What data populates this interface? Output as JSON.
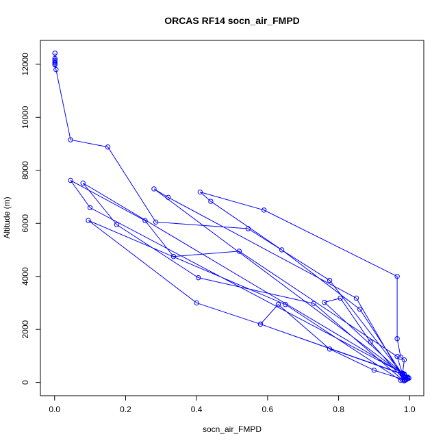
{
  "chart_data": {
    "type": "line",
    "title": "ORCAS RF14 socn_air_FMPD",
    "xlabel": "socn_air_FMPD",
    "ylabel": "Altitude (m)",
    "xlim": [
      -0.04,
      1.04
    ],
    "ylim": [
      -500,
      12900
    ],
    "xticks": [
      "0.0",
      "0.2",
      "0.4",
      "0.6",
      "0.8",
      "1.0"
    ],
    "xtick_values": [
      0,
      0.2,
      0.4,
      0.6,
      0.8,
      1.0
    ],
    "yticks": [
      "0",
      "2000",
      "4000",
      "6000",
      "8000",
      "10000",
      "12000"
    ],
    "ytick_values": [
      0,
      2000,
      4000,
      6000,
      8000,
      10000,
      12000
    ],
    "grid": false,
    "legend": "none",
    "series_color": "#0000ff",
    "series": [
      {
        "x": [
          0.001,
          0.001,
          0.001,
          0.001,
          0.001,
          0.001,
          0.001,
          0.001,
          0.004,
          0.045,
          0.15,
          0.285,
          0.545,
          0.775,
          0.98,
          0.985,
          0.975,
          0.965,
          0.965,
          0.59,
          0.41,
          0.44,
          0.64,
          0.86,
          0.98,
          0.995,
          0.99,
          0.985,
          0.85,
          0.32,
          0.28,
          0.98,
          0.995,
          0.985,
          0.965,
          0.52,
          0.335,
          0.255,
          0.045,
          0.1,
          0.985,
          0.995,
          0.98,
          0.73,
          0.405,
          0.175,
          0.08,
          0.98,
          0.99,
          0.975,
          0.65,
          0.095,
          0.4,
          0.58,
          0.98,
          0.995,
          0.985,
          0.89,
          0.805,
          0.76,
          0.982,
          0.998,
          0.985,
          0.9,
          0.775,
          0.63,
          0.58,
          0.985
        ],
        "y": [
          12420,
          12420,
          12220,
          12150,
          12100,
          12050,
          12000,
          11980,
          11800,
          9150,
          8880,
          6050,
          5800,
          3850,
          300,
          850,
          950,
          1650,
          4000,
          6500,
          7180,
          6830,
          5000,
          2760,
          300,
          150,
          100,
          60,
          3180,
          6980,
          7300,
          320,
          180,
          100,
          980,
          4950,
          4750,
          6100,
          7620,
          6590,
          320,
          200,
          100,
          2980,
          3950,
          5950,
          7520,
          350,
          200,
          80,
          2940,
          6110,
          3000,
          2200,
          310,
          150,
          90,
          1520,
          3180,
          3020,
          300,
          160,
          100,
          460,
          1260,
          2940,
          2200,
          300
        ]
      }
    ]
  }
}
